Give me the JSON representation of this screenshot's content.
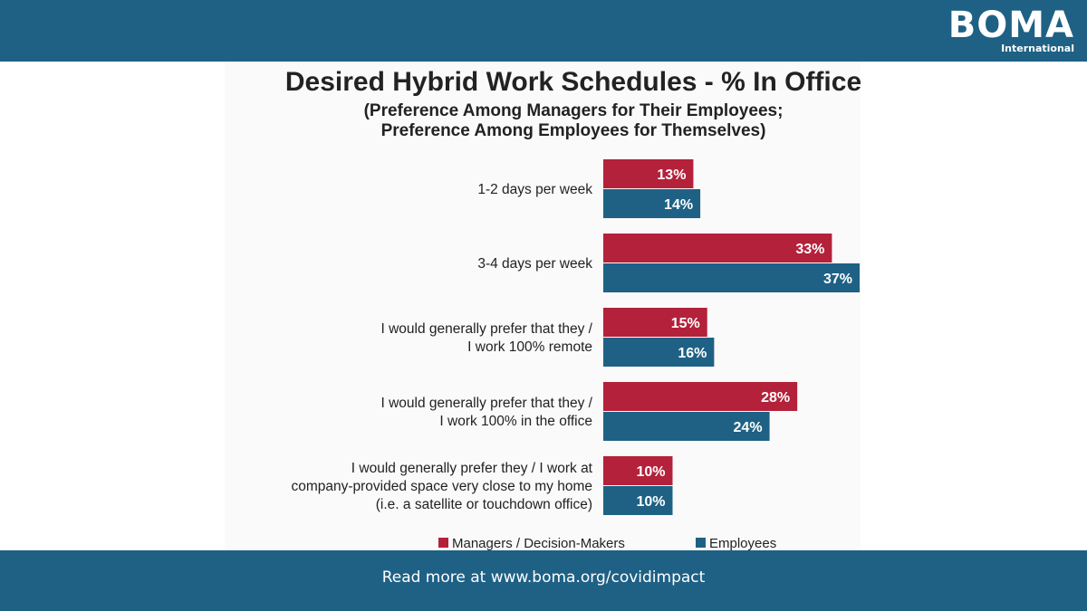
{
  "header": {
    "logo_word": "BOMA",
    "logo_sub": "International"
  },
  "footer": {
    "text": "Read more at www.boma.org/covidimpact"
  },
  "colors": {
    "bar_background": "#1e6185",
    "managers": "#b4213a",
    "employees": "#1e6185"
  },
  "chart_data": {
    "type": "bar",
    "orientation": "horizontal",
    "title": "Desired Hybrid Work Schedules - % In Office",
    "subtitle": [
      "(Preference Among Managers for Their Employees;",
      "Preference Among Employees for Themselves)"
    ],
    "categories": [
      [
        "1-2 days per week"
      ],
      [
        "3-4 days per week"
      ],
      [
        "I would generally prefer that they /",
        "I work 100% remote"
      ],
      [
        "I would generally prefer that they /",
        "I work 100% in the office"
      ],
      [
        "I would generally prefer they / I work at",
        "company-provided space very close to my home",
        "(i.e. a satellite or touchdown office)"
      ]
    ],
    "series": [
      {
        "name": "Managers / Decision-Makers",
        "values": [
          13,
          33,
          15,
          28,
          10
        ],
        "labels": [
          "13%",
          "33%",
          "15%",
          "28%",
          "10%"
        ]
      },
      {
        "name": "Employees",
        "values": [
          14,
          37,
          16,
          24,
          10
        ],
        "labels": [
          "14%",
          "37%",
          "16%",
          "24%",
          "10%"
        ]
      }
    ],
    "xlim": [
      0,
      37
    ],
    "legend": "bottom",
    "grid": false
  }
}
